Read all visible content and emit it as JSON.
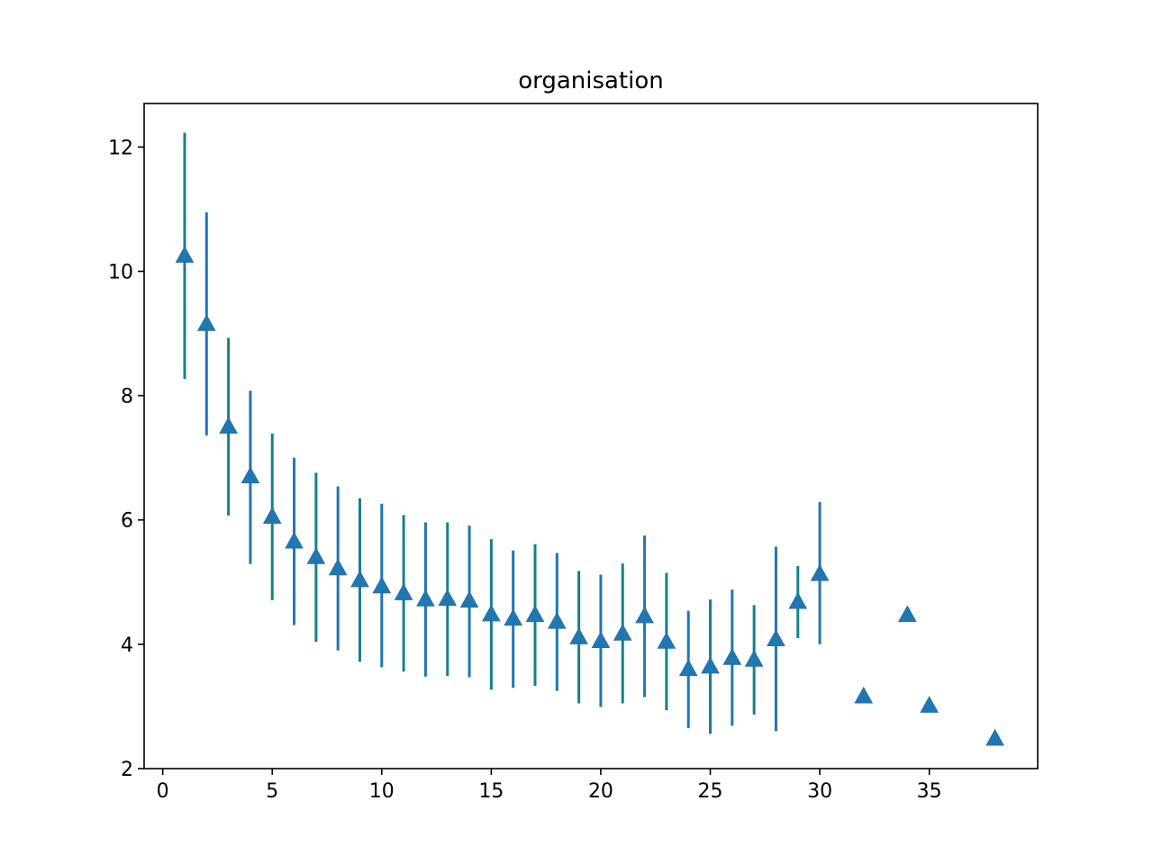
{
  "chart_data": {
    "type": "scatter",
    "title": "organisation",
    "xlabel": "",
    "ylabel": "",
    "xlim": [
      -0.85,
      39.95
    ],
    "ylim": [
      2.0,
      12.7
    ],
    "xticks": [
      0,
      5,
      10,
      15,
      20,
      25,
      30,
      35
    ],
    "yticks": [
      2,
      4,
      6,
      8,
      10,
      12
    ],
    "grid": false,
    "legend": "none",
    "marker": "triangle-up",
    "colors": {
      "marker": "#1f77b4",
      "errorbar_a": "#1f77b4",
      "errorbar_b": "#17808a",
      "axes": "#000000"
    },
    "points": [
      {
        "x": 1,
        "y": 10.25,
        "lo": 8.27,
        "hi": 12.23
      },
      {
        "x": 2,
        "y": 9.15,
        "lo": 7.36,
        "hi": 10.95
      },
      {
        "x": 3,
        "y": 7.5,
        "lo": 6.07,
        "hi": 8.93
      },
      {
        "x": 4,
        "y": 6.7,
        "lo": 5.29,
        "hi": 8.08
      },
      {
        "x": 5,
        "y": 6.05,
        "lo": 4.71,
        "hi": 7.39
      },
      {
        "x": 6,
        "y": 5.65,
        "lo": 4.31,
        "hi": 7.0
      },
      {
        "x": 7,
        "y": 5.4,
        "lo": 4.04,
        "hi": 6.76
      },
      {
        "x": 8,
        "y": 5.22,
        "lo": 3.9,
        "hi": 6.54
      },
      {
        "x": 9,
        "y": 5.03,
        "lo": 3.72,
        "hi": 6.35
      },
      {
        "x": 10,
        "y": 4.93,
        "lo": 3.63,
        "hi": 6.26
      },
      {
        "x": 11,
        "y": 4.82,
        "lo": 3.56,
        "hi": 6.08
      },
      {
        "x": 12,
        "y": 4.72,
        "lo": 3.48,
        "hi": 5.96
      },
      {
        "x": 13,
        "y": 4.73,
        "lo": 3.49,
        "hi": 5.96
      },
      {
        "x": 14,
        "y": 4.7,
        "lo": 3.47,
        "hi": 5.91
      },
      {
        "x": 15,
        "y": 4.48,
        "lo": 3.27,
        "hi": 5.69
      },
      {
        "x": 16,
        "y": 4.41,
        "lo": 3.3,
        "hi": 5.51
      },
      {
        "x": 17,
        "y": 4.47,
        "lo": 3.33,
        "hi": 5.61
      },
      {
        "x": 18,
        "y": 4.36,
        "lo": 3.25,
        "hi": 5.47
      },
      {
        "x": 19,
        "y": 4.11,
        "lo": 3.05,
        "hi": 5.18
      },
      {
        "x": 20,
        "y": 4.05,
        "lo": 2.99,
        "hi": 5.12
      },
      {
        "x": 21,
        "y": 4.17,
        "lo": 3.05,
        "hi": 5.3
      },
      {
        "x": 22,
        "y": 4.45,
        "lo": 3.15,
        "hi": 5.75
      },
      {
        "x": 23,
        "y": 4.04,
        "lo": 2.94,
        "hi": 5.15
      },
      {
        "x": 24,
        "y": 3.6,
        "lo": 2.65,
        "hi": 4.54
      },
      {
        "x": 25,
        "y": 3.64,
        "lo": 2.56,
        "hi": 4.72
      },
      {
        "x": 26,
        "y": 3.78,
        "lo": 2.69,
        "hi": 4.88
      },
      {
        "x": 27,
        "y": 3.75,
        "lo": 2.87,
        "hi": 4.63
      },
      {
        "x": 28,
        "y": 4.08,
        "lo": 2.6,
        "hi": 5.57
      },
      {
        "x": 29,
        "y": 4.68,
        "lo": 4.1,
        "hi": 5.26
      },
      {
        "x": 30,
        "y": 5.13,
        "lo": 4.0,
        "hi": 6.29
      },
      {
        "x": 32,
        "y": 3.16
      },
      {
        "x": 34,
        "y": 4.47
      },
      {
        "x": 35,
        "y": 3.01
      },
      {
        "x": 38,
        "y": 2.48
      }
    ]
  }
}
